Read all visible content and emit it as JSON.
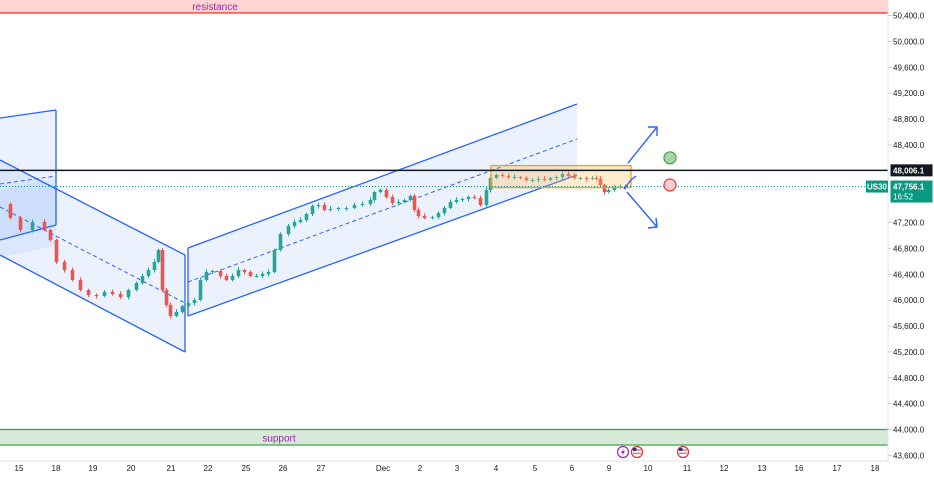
{
  "chart_data": {
    "type": "candlestick",
    "symbol": "US30",
    "y_axis": {
      "range": [
        43550,
        50750
      ],
      "ticks": [
        {
          "value": 50400,
          "label": "50,400.0"
        },
        {
          "value": 50000,
          "label": "50,000.0"
        },
        {
          "value": 49600,
          "label": "49,600.0"
        },
        {
          "value": 49200,
          "label": "49,200.0"
        },
        {
          "value": 48800,
          "label": "48,800.0"
        },
        {
          "value": 48400,
          "label": "48,400.0"
        },
        {
          "value": 47200,
          "label": "47,200.0"
        },
        {
          "value": 46800,
          "label": "46,800.0"
        },
        {
          "value": 46400,
          "label": "46,400.0"
        },
        {
          "value": 46000,
          "label": "46,000.0"
        },
        {
          "value": 45600,
          "label": "45,600.0"
        },
        {
          "value": 45200,
          "label": "45,200.0"
        },
        {
          "value": 44800,
          "label": "44,800.0"
        },
        {
          "value": 44400,
          "label": "44,400.0"
        },
        {
          "value": 44000,
          "label": "44,000.0"
        },
        {
          "value": 43600,
          "label": "43,600.0"
        }
      ]
    },
    "x_axis": {
      "labels": [
        "15",
        "18",
        "19",
        "20",
        "21",
        "22",
        "25",
        "26",
        "27",
        "Dec",
        "2",
        "3",
        "4",
        "5",
        "6",
        "9",
        "10",
        "11",
        "12",
        "13",
        "16",
        "17",
        "18"
      ]
    },
    "zones": [
      {
        "name": "resistance",
        "label": "resistance",
        "from": 50440,
        "to": 50650,
        "color": "#f44336"
      },
      {
        "name": "support",
        "label": "support",
        "from": 43760,
        "to": 44000,
        "color": "#43a047"
      }
    ],
    "key_level": {
      "value": 48006.1,
      "label": "48,006.1"
    },
    "last_price": {
      "symbol": "US30",
      "value": 47756.1,
      "label": "47,756.1",
      "countdown": "16:52"
    },
    "consolidation_box": {
      "from": 47740,
      "to": 48080
    },
    "target_markers": [
      {
        "name": "target-up",
        "value": 48200,
        "color": "#43a047"
      },
      {
        "name": "target-down",
        "value": 47780,
        "color": "#e53935"
      }
    ],
    "event_icons": [
      "lightning",
      "us-flag",
      "us-flag"
    ],
    "colors": {
      "up": "#26a69a",
      "down": "#ef5350",
      "channel": "#2962ff",
      "label": "#9c27b0",
      "last_price": "#089981",
      "zone_text": "#9c27b0"
    }
  }
}
